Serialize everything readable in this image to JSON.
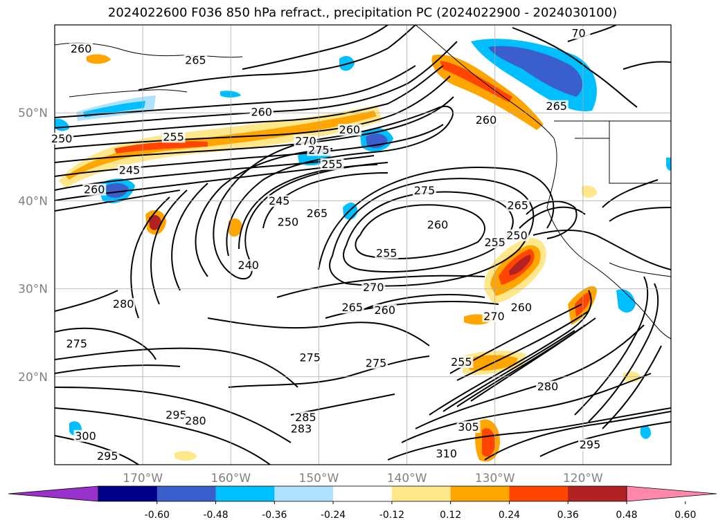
{
  "chart_data": {
    "type": "contour",
    "title": "2024022600 F036 850 hPa refract., precipitation PC (2024022900 - 2024030100)",
    "lon_range": [
      -180,
      -110
    ],
    "lat_range": [
      10,
      60
    ],
    "grid": true,
    "x_ticks": [
      {
        "lon": -170,
        "label": "170°W"
      },
      {
        "lon": -160,
        "label": "160°W"
      },
      {
        "lon": -150,
        "label": "150°W"
      },
      {
        "lon": -140,
        "label": "140°W"
      },
      {
        "lon": -130,
        "label": "130°W"
      },
      {
        "lon": -120,
        "label": "120°W"
      }
    ],
    "y_ticks": [
      {
        "lat": 20,
        "label": "20°N"
      },
      {
        "lat": 30,
        "label": "30°N"
      },
      {
        "lat": 40,
        "label": "40°N"
      },
      {
        "lat": 50,
        "label": "50°N"
      }
    ],
    "contour_labels": [
      {
        "text": "260",
        "lon": -177.0,
        "lat": 57.0
      },
      {
        "text": "265",
        "lon": -164.0,
        "lat": 55.7
      },
      {
        "text": "70",
        "lon": -120.5,
        "lat": 58.8
      },
      {
        "text": "260",
        "lon": -156.5,
        "lat": 49.8
      },
      {
        "text": "265",
        "lon": -123.0,
        "lat": 50.5
      },
      {
        "text": "250",
        "lon": -179.2,
        "lat": 46.8
      },
      {
        "text": "255",
        "lon": -166.5,
        "lat": 47.0
      },
      {
        "text": "270",
        "lon": -151.5,
        "lat": 46.5
      },
      {
        "text": "275",
        "lon": -150.0,
        "lat": 45.5
      },
      {
        "text": "260",
        "lon": -146.5,
        "lat": 47.8
      },
      {
        "text": "260",
        "lon": -131.0,
        "lat": 48.9
      },
      {
        "text": "255",
        "lon": -148.5,
        "lat": 43.9
      },
      {
        "text": "245",
        "lon": -171.5,
        "lat": 43.2
      },
      {
        "text": "260",
        "lon": -175.5,
        "lat": 41.0
      },
      {
        "text": "245",
        "lon": -154.5,
        "lat": 39.7
      },
      {
        "text": "250",
        "lon": -153.5,
        "lat": 37.3
      },
      {
        "text": "265",
        "lon": -150.2,
        "lat": 38.3
      },
      {
        "text": "275",
        "lon": -138.0,
        "lat": 40.9
      },
      {
        "text": "260",
        "lon": -136.5,
        "lat": 37.0
      },
      {
        "text": "265",
        "lon": -127.4,
        "lat": 39.2
      },
      {
        "text": "255",
        "lon": -142.3,
        "lat": 33.8
      },
      {
        "text": "255",
        "lon": -130.0,
        "lat": 35.0
      },
      {
        "text": "250",
        "lon": -127.5,
        "lat": 35.8
      },
      {
        "text": "240",
        "lon": -158.0,
        "lat": 32.4
      },
      {
        "text": "270",
        "lon": -143.8,
        "lat": 29.9
      },
      {
        "text": "265",
        "lon": -146.2,
        "lat": 27.6
      },
      {
        "text": "260",
        "lon": -142.5,
        "lat": 27.3
      },
      {
        "text": "280",
        "lon": -172.2,
        "lat": 28.0
      },
      {
        "text": "270",
        "lon": -130.1,
        "lat": 26.6
      },
      {
        "text": "260",
        "lon": -127.0,
        "lat": 27.6
      },
      {
        "text": "275",
        "lon": -177.5,
        "lat": 23.5
      },
      {
        "text": "275",
        "lon": -151.0,
        "lat": 21.9
      },
      {
        "text": "275",
        "lon": -143.5,
        "lat": 21.3
      },
      {
        "text": "255",
        "lon": -133.8,
        "lat": 21.4
      },
      {
        "text": "295",
        "lon": -166.2,
        "lat": 15.4
      },
      {
        "text": "280",
        "lon": -164.0,
        "lat": 14.7
      },
      {
        "text": "285",
        "lon": -151.5,
        "lat": 15.1
      },
      {
        "text": "283",
        "lon": -152.0,
        "lat": 13.8
      },
      {
        "text": "280",
        "lon": -124.0,
        "lat": 18.6
      },
      {
        "text": "300",
        "lon": -176.5,
        "lat": 13.0
      },
      {
        "text": "295",
        "lon": -174.0,
        "lat": 10.7
      },
      {
        "text": "305",
        "lon": -133.0,
        "lat": 14.0
      },
      {
        "text": "310",
        "lon": -135.5,
        "lat": 11.0
      },
      {
        "text": "295",
        "lon": -119.2,
        "lat": 12.0
      }
    ],
    "colorbar": {
      "extend": "both",
      "levels": [
        "-0.60",
        "-0.48",
        "-0.36",
        "-0.24",
        "-0.12",
        "0.12",
        "0.24",
        "0.36",
        "0.48",
        "0.60"
      ],
      "colors": [
        "#9932cc",
        "#00008b",
        "#3a5fcd",
        "#00bfff",
        "#b0e2ff",
        "#ffffff",
        "#ffe88c",
        "#ffa500",
        "#ff4500",
        "#b22222",
        "#ff88aa"
      ]
    }
  }
}
